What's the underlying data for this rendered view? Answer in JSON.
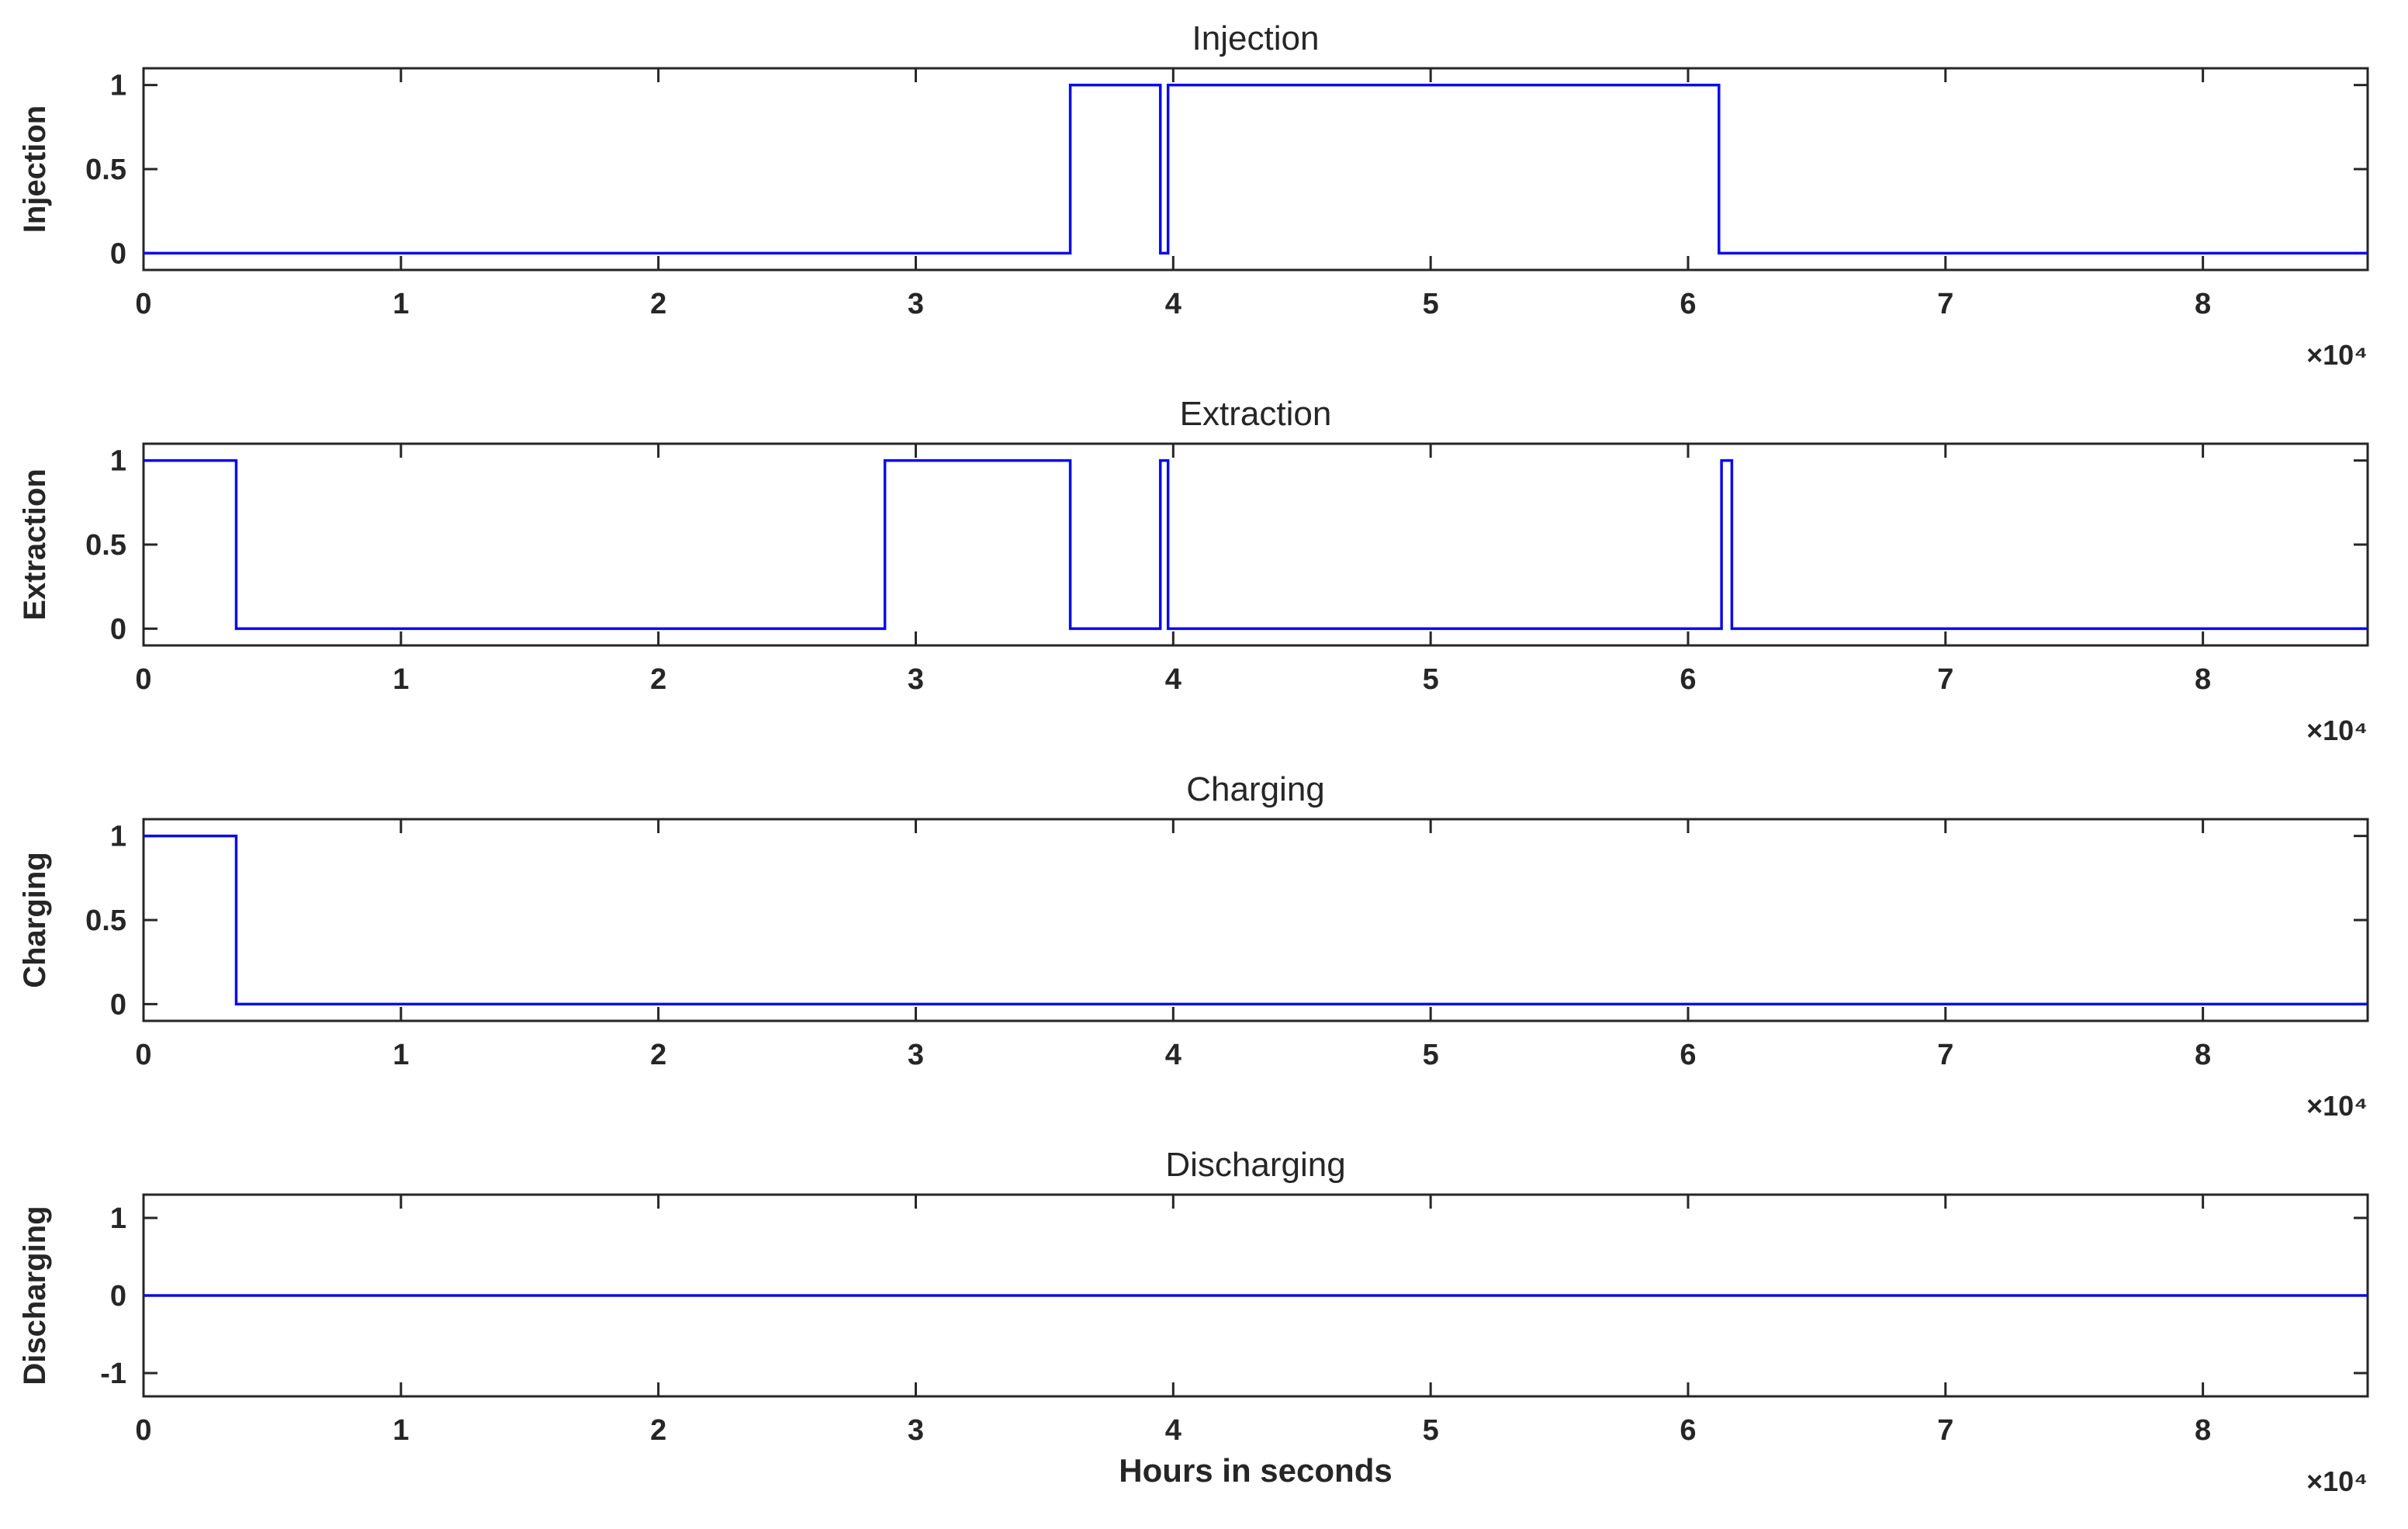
{
  "figure": {
    "xlabel": "Hours in seconds"
  },
  "colors": {
    "line": "#0B0BEA",
    "axis": "#262626",
    "background": "#FFFFFF"
  },
  "chart_data": [
    {
      "type": "line",
      "title": "Injection",
      "ylabel": "Injection",
      "xlim": [
        0,
        86400
      ],
      "ylim": [
        -0.1,
        1.1
      ],
      "x_ticks": [
        0,
        10000,
        20000,
        30000,
        40000,
        50000,
        60000,
        70000,
        80000
      ],
      "x_tick_labels": [
        "0",
        "1",
        "2",
        "3",
        "4",
        "5",
        "6",
        "7",
        "8"
      ],
      "x_exponent": "×10⁴",
      "y_ticks": [
        0,
        0.5,
        1
      ],
      "y_tick_labels": [
        "0",
        "0.5",
        "1"
      ],
      "grid": false,
      "points": [
        [
          0,
          0
        ],
        [
          36000,
          0
        ],
        [
          36000,
          1
        ],
        [
          39500,
          1
        ],
        [
          39500,
          0
        ],
        [
          39800,
          0
        ],
        [
          39800,
          1
        ],
        [
          61200,
          1
        ],
        [
          61200,
          0
        ],
        [
          86400,
          0
        ]
      ]
    },
    {
      "type": "line",
      "title": "Extraction",
      "ylabel": "Extraction",
      "xlim": [
        0,
        86400
      ],
      "ylim": [
        -0.1,
        1.1
      ],
      "x_ticks": [
        0,
        10000,
        20000,
        30000,
        40000,
        50000,
        60000,
        70000,
        80000
      ],
      "x_tick_labels": [
        "0",
        "1",
        "2",
        "3",
        "4",
        "5",
        "6",
        "7",
        "8"
      ],
      "x_exponent": "×10⁴",
      "y_ticks": [
        0,
        0.5,
        1
      ],
      "y_tick_labels": [
        "0",
        "0.5",
        "1"
      ],
      "grid": false,
      "points": [
        [
          0,
          1
        ],
        [
          3600,
          1
        ],
        [
          3600,
          0
        ],
        [
          28800,
          0
        ],
        [
          28800,
          1
        ],
        [
          36000,
          1
        ],
        [
          36000,
          0
        ],
        [
          39500,
          0
        ],
        [
          39500,
          1
        ],
        [
          39800,
          1
        ],
        [
          39800,
          0
        ],
        [
          61300,
          0
        ],
        [
          61300,
          1
        ],
        [
          61700,
          1
        ],
        [
          61700,
          0
        ],
        [
          86400,
          0
        ]
      ]
    },
    {
      "type": "line",
      "title": "Charging",
      "ylabel": "Charging",
      "xlim": [
        0,
        86400
      ],
      "ylim": [
        -0.1,
        1.1
      ],
      "x_ticks": [
        0,
        10000,
        20000,
        30000,
        40000,
        50000,
        60000,
        70000,
        80000
      ],
      "x_tick_labels": [
        "0",
        "1",
        "2",
        "3",
        "4",
        "5",
        "6",
        "7",
        "8"
      ],
      "x_exponent": "×10⁴",
      "y_ticks": [
        0,
        0.5,
        1
      ],
      "y_tick_labels": [
        "0",
        "0.5",
        "1"
      ],
      "grid": false,
      "points": [
        [
          0,
          1
        ],
        [
          3600,
          1
        ],
        [
          3600,
          0
        ],
        [
          86400,
          0
        ]
      ]
    },
    {
      "type": "line",
      "title": "Discharging",
      "ylabel": "Discharging",
      "xlim": [
        0,
        86400
      ],
      "ylim": [
        -1.3,
        1.3
      ],
      "x_ticks": [
        0,
        10000,
        20000,
        30000,
        40000,
        50000,
        60000,
        70000,
        80000
      ],
      "x_tick_labels": [
        "0",
        "1",
        "2",
        "3",
        "4",
        "5",
        "6",
        "7",
        "8"
      ],
      "x_exponent": "×10⁴",
      "y_ticks": [
        -1,
        0,
        1
      ],
      "y_tick_labels": [
        "-1",
        "0",
        "1"
      ],
      "grid": false,
      "points": [
        [
          0,
          0
        ],
        [
          86400,
          0
        ]
      ]
    }
  ]
}
